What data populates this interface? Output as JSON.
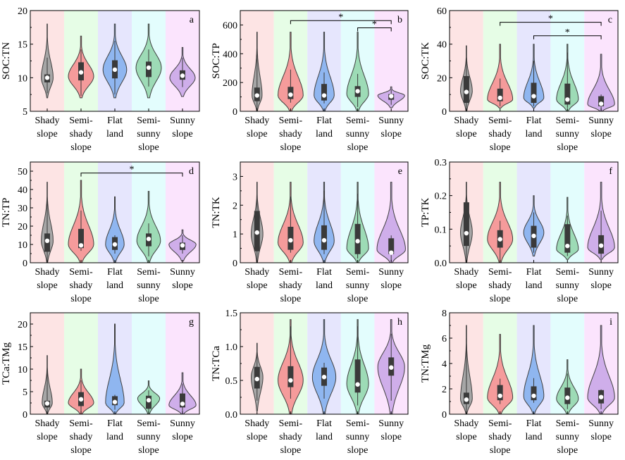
{
  "categories": [
    [
      "Shady",
      "slope"
    ],
    [
      "Semi-",
      "shady",
      "slope"
    ],
    [
      "Flat",
      "land"
    ],
    [
      "Semi-",
      "sunny",
      "slope"
    ],
    [
      "Sunny",
      "slope"
    ]
  ],
  "colors": {
    "backgrounds": [
      "#fde4e4",
      "#e6fde6",
      "#e6e6fd",
      "#e3fdfd",
      "#fbe4fd"
    ],
    "violins": [
      "#a6a6a6",
      "#f59b9b",
      "#8fb6f0",
      "#9ddbb6",
      "#cfaeea"
    ],
    "outline": "#404040",
    "box": "#3a3a3a",
    "median": "#ffffff"
  },
  "chart_data": [
    {
      "type": "violin",
      "letter": "a",
      "ylabel": "SOC:TN",
      "ylim": [
        5,
        20
      ],
      "yticks": [
        5,
        10,
        15,
        20
      ],
      "series": [
        {
          "min": 7,
          "max": 18,
          "q1": 9.3,
          "q3": 10.5,
          "median": 10,
          "wlo": 7.7,
          "whi": 13,
          "width": 0.35,
          "peak": 10
        },
        {
          "min": 7,
          "max": 16.2,
          "q1": 9.6,
          "q3": 12.3,
          "median": 10.8,
          "wlo": 7.3,
          "whi": 14.2,
          "width": 0.75,
          "peak": 10.2
        },
        {
          "min": 7,
          "max": 18,
          "q1": 9.9,
          "q3": 12.6,
          "median": 11.2,
          "wlo": 7.5,
          "whi": 15.5,
          "width": 0.7,
          "peak": 11.2
        },
        {
          "min": 7,
          "max": 18,
          "q1": 10.1,
          "q3": 12.4,
          "median": 11.5,
          "wlo": 8.7,
          "whi": 14.2,
          "width": 0.75,
          "peak": 11.5
        },
        {
          "min": 7.2,
          "max": 14.5,
          "q1": 9.7,
          "q3": 11.1,
          "median": 10.3,
          "wlo": 8.6,
          "whi": 13,
          "width": 0.75,
          "peak": 10
        }
      ],
      "significance": []
    },
    {
      "type": "violin",
      "letter": "b",
      "ylabel": "SOC:TP",
      "ylim": [
        0,
        700
      ],
      "yticks": [
        0,
        200,
        400,
        600
      ],
      "series": [
        {
          "min": 0,
          "max": 550,
          "q1": 70,
          "q3": 165,
          "median": 110,
          "wlo": 0,
          "whi": 550,
          "width": 0.3,
          "peak": 110
        },
        {
          "min": 0,
          "max": 550,
          "q1": 85,
          "q3": 170,
          "median": 115,
          "wlo": 60,
          "whi": 290,
          "width": 0.75,
          "peak": 110
        },
        {
          "min": 0,
          "max": 550,
          "q1": 75,
          "q3": 190,
          "median": 110,
          "wlo": 55,
          "whi": 270,
          "width": 0.6,
          "peak": 110
        },
        {
          "min": 0,
          "max": 550,
          "q1": 100,
          "q3": 175,
          "median": 140,
          "wlo": 30,
          "whi": 260,
          "width": 0.65,
          "peak": 120
        },
        {
          "min": 25,
          "max": 170,
          "q1": 80,
          "q3": 120,
          "median": 105,
          "wlo": 45,
          "whi": 150,
          "width": 0.8,
          "peak": 110
        }
      ],
      "significance": [
        {
          "from": 1,
          "to": 4,
          "label": "*",
          "level": 630
        },
        {
          "from": 3,
          "to": 4,
          "label": "*",
          "level": 580
        }
      ]
    },
    {
      "type": "violin",
      "letter": "c",
      "ylabel": "SOC:TK",
      "ylim": [
        0,
        60
      ],
      "yticks": [
        0,
        20,
        40,
        60
      ],
      "series": [
        {
          "min": 0,
          "max": 39,
          "q1": 5,
          "q3": 21,
          "median": 11.5,
          "wlo": 0,
          "whi": 39,
          "width": 0.35,
          "peak": 12
        },
        {
          "min": 2,
          "max": 40,
          "q1": 6,
          "q3": 13.5,
          "median": 8,
          "wlo": 3,
          "whi": 19.5,
          "width": 0.75,
          "peak": 7
        },
        {
          "min": 2,
          "max": 40,
          "q1": 5,
          "q3": 17,
          "median": 9,
          "wlo": 3,
          "whi": 30,
          "width": 0.6,
          "peak": 8
        },
        {
          "min": 0,
          "max": 40,
          "q1": 4,
          "q3": 16.5,
          "median": 7,
          "wlo": 2,
          "whi": 35,
          "width": 0.65,
          "peak": 7
        },
        {
          "min": 0,
          "max": 34,
          "q1": 3,
          "q3": 9,
          "median": 4.5,
          "wlo": 1,
          "whi": 10,
          "width": 0.8,
          "peak": 4
        }
      ],
      "significance": [
        {
          "from": 1,
          "to": 4,
          "label": "*",
          "level": 53
        },
        {
          "from": 2,
          "to": 4,
          "label": "*",
          "level": 45
        }
      ]
    },
    {
      "type": "violin",
      "letter": "d",
      "ylabel": "TN:TP",
      "ylim": [
        0,
        55
      ],
      "yticks": [
        0,
        10,
        20,
        30,
        40,
        50
      ],
      "series": [
        {
          "min": 0,
          "max": 44,
          "q1": 6,
          "q3": 16,
          "median": 12,
          "wlo": 0,
          "whi": 36,
          "width": 0.35,
          "peak": 12
        },
        {
          "min": 0,
          "max": 45,
          "q1": 8,
          "q3": 18.5,
          "median": 9.5,
          "wlo": 6.5,
          "whi": 28.5,
          "width": 0.75,
          "peak": 10
        },
        {
          "min": 0,
          "max": 36,
          "q1": 7,
          "q3": 14,
          "median": 10,
          "wlo": 5,
          "whi": 15,
          "width": 0.55,
          "peak": 10
        },
        {
          "min": 0,
          "max": 39,
          "q1": 9,
          "q3": 16,
          "median": 13,
          "wlo": 3.5,
          "whi": 21.5,
          "width": 0.7,
          "peak": 12
        },
        {
          "min": 1,
          "max": 18,
          "q1": 7,
          "q3": 11,
          "median": 9.5,
          "wlo": 5,
          "whi": 15,
          "width": 0.8,
          "peak": 10
        }
      ],
      "significance": [
        {
          "from": 1,
          "to": 4,
          "label": "*",
          "level": 49
        }
      ]
    },
    {
      "type": "violin",
      "letter": "e",
      "ylabel": "TN:TK",
      "ylim": [
        0,
        3.5
      ],
      "yticks": [
        0,
        1,
        2,
        3
      ],
      "series": [
        {
          "min": 0,
          "max": 2.8,
          "q1": 0.4,
          "q3": 1.8,
          "median": 1.05,
          "wlo": 0,
          "whi": 2.8,
          "width": 0.35,
          "peak": 1
        },
        {
          "min": 0,
          "max": 2.8,
          "q1": 0.45,
          "q3": 1.25,
          "median": 0.78,
          "wlo": 0.35,
          "whi": 2.3,
          "width": 0.75,
          "peak": 0.7
        },
        {
          "min": 0,
          "max": 2.8,
          "q1": 0.45,
          "q3": 1.3,
          "median": 0.78,
          "wlo": 0.3,
          "whi": 2.5,
          "width": 0.6,
          "peak": 0.75
        },
        {
          "min": 0,
          "max": 2.8,
          "q1": 0.3,
          "q3": 1.35,
          "median": 0.75,
          "wlo": 0.15,
          "whi": 2.4,
          "width": 0.65,
          "peak": 0.5
        },
        {
          "min": 0,
          "max": 2.8,
          "q1": 0.3,
          "q3": 0.85,
          "median": 0.35,
          "wlo": 0.05,
          "whi": 0.95,
          "width": 0.85,
          "peak": 0.45
        }
      ],
      "significance": []
    },
    {
      "type": "violin",
      "letter": "f",
      "ylabel": "TP:TK",
      "ylim": [
        0,
        0.3
      ],
      "yticks": [
        0.0,
        0.1,
        0.2,
        0.3
      ],
      "series": [
        {
          "min": 0,
          "max": 0.24,
          "q1": 0.05,
          "q3": 0.18,
          "median": 0.088,
          "wlo": 0,
          "whi": 0.24,
          "width": 0.35,
          "peak": 0.09
        },
        {
          "min": 0,
          "max": 0.24,
          "q1": 0.045,
          "q3": 0.097,
          "median": 0.07,
          "wlo": 0,
          "whi": 0.125,
          "width": 0.75,
          "peak": 0.07
        },
        {
          "min": 0.02,
          "max": 0.2,
          "q1": 0.045,
          "q3": 0.11,
          "median": 0.08,
          "wlo": 0.03,
          "whi": 0.15,
          "width": 0.6,
          "peak": 0.09
        },
        {
          "min": 0.01,
          "max": 0.195,
          "q1": 0.03,
          "q3": 0.115,
          "median": 0.05,
          "wlo": 0.02,
          "whi": 0.14,
          "width": 0.65,
          "peak": 0.04
        },
        {
          "min": 0.01,
          "max": 0.24,
          "q1": 0.027,
          "q3": 0.082,
          "median": 0.051,
          "wlo": 0.012,
          "whi": 0.155,
          "width": 0.8,
          "peak": 0.045
        }
      ],
      "significance": []
    },
    {
      "type": "violin",
      "letter": "g",
      "ylabel": "TCa:TMg",
      "ylim": [
        0,
        22.5
      ],
      "yticks": [
        0,
        5,
        10,
        15,
        20
      ],
      "series": [
        {
          "min": 0,
          "max": 13,
          "q1": 1.5,
          "q3": 3,
          "median": 2.4,
          "wlo": 0,
          "whi": 10.5,
          "width": 0.3,
          "peak": 2.5
        },
        {
          "min": 0,
          "max": 10,
          "q1": 1.8,
          "q3": 4.9,
          "median": 3.3,
          "wlo": 0.5,
          "whi": 7.5,
          "width": 0.75,
          "peak": 2.5
        },
        {
          "min": 0,
          "max": 20,
          "q1": 2,
          "q3": 4,
          "median": 2.7,
          "wlo": 1,
          "whi": 4.3,
          "width": 0.55,
          "peak": 2.5
        },
        {
          "min": 0,
          "max": 7.4,
          "q1": 1.2,
          "q3": 4.1,
          "median": 3.1,
          "wlo": 0.3,
          "whi": 5.3,
          "width": 0.65,
          "peak": 3.5
        },
        {
          "min": 0,
          "max": 9.2,
          "q1": 1.5,
          "q3": 4.6,
          "median": 2.3,
          "wlo": 0.5,
          "whi": 6.8,
          "width": 0.8,
          "peak": 2
        }
      ],
      "significance": []
    },
    {
      "type": "violin",
      "letter": "h",
      "ylabel": "TN:TCa",
      "ylim": [
        0,
        1.5
      ],
      "yticks": [
        0.0,
        0.5,
        1.0,
        1.5
      ],
      "series": [
        {
          "min": 0.05,
          "max": 1.05,
          "q1": 0.38,
          "q3": 0.7,
          "median": 0.52,
          "wlo": 0.2,
          "whi": 0.9,
          "width": 0.35,
          "peak": 0.55
        },
        {
          "min": 0,
          "max": 1.4,
          "q1": 0.4,
          "q3": 0.71,
          "median": 0.5,
          "wlo": 0.23,
          "whi": 1.3,
          "width": 0.75,
          "peak": 0.5
        },
        {
          "min": 0,
          "max": 1.4,
          "q1": 0.42,
          "q3": 0.69,
          "median": 0.55,
          "wlo": 0.23,
          "whi": 0.76,
          "width": 0.7,
          "peak": 0.55
        },
        {
          "min": 0,
          "max": 1.4,
          "q1": 0.32,
          "q3": 0.81,
          "median": 0.44,
          "wlo": 0.13,
          "whi": 1.3,
          "width": 0.65,
          "peak": 0.45
        },
        {
          "min": 0,
          "max": 1.4,
          "q1": 0.57,
          "q3": 0.84,
          "median": 0.69,
          "wlo": 0.2,
          "whi": 1.19,
          "width": 0.8,
          "peak": 0.7
        }
      ],
      "significance": []
    },
    {
      "type": "violin",
      "letter": "i",
      "ylabel": "TN:TMg",
      "ylim": [
        0,
        8
      ],
      "yticks": [
        0,
        2,
        4,
        6,
        8
      ],
      "series": [
        {
          "min": 0,
          "max": 7,
          "q1": 0.8,
          "q3": 1.7,
          "median": 1.15,
          "wlo": 0,
          "whi": 6,
          "width": 0.35,
          "peak": 1.2
        },
        {
          "min": 0,
          "max": 6.3,
          "q1": 1.1,
          "q3": 2.3,
          "median": 1.45,
          "wlo": 0.8,
          "whi": 2.8,
          "width": 0.75,
          "peak": 1.3
        },
        {
          "min": 0,
          "max": 7,
          "q1": 1.1,
          "q3": 2.2,
          "median": 1.45,
          "wlo": 0.9,
          "whi": 2.85,
          "width": 0.6,
          "peak": 1.4
        },
        {
          "min": 0,
          "max": 4.3,
          "q1": 0.8,
          "q3": 2.1,
          "median": 1.3,
          "wlo": 0.4,
          "whi": 3.2,
          "width": 0.65,
          "peak": 1.2
        },
        {
          "min": 0,
          "max": 7,
          "q1": 0.85,
          "q3": 1.9,
          "median": 1.35,
          "wlo": 0.4,
          "whi": 1.95,
          "width": 0.8,
          "peak": 1.3
        }
      ],
      "significance": []
    }
  ]
}
